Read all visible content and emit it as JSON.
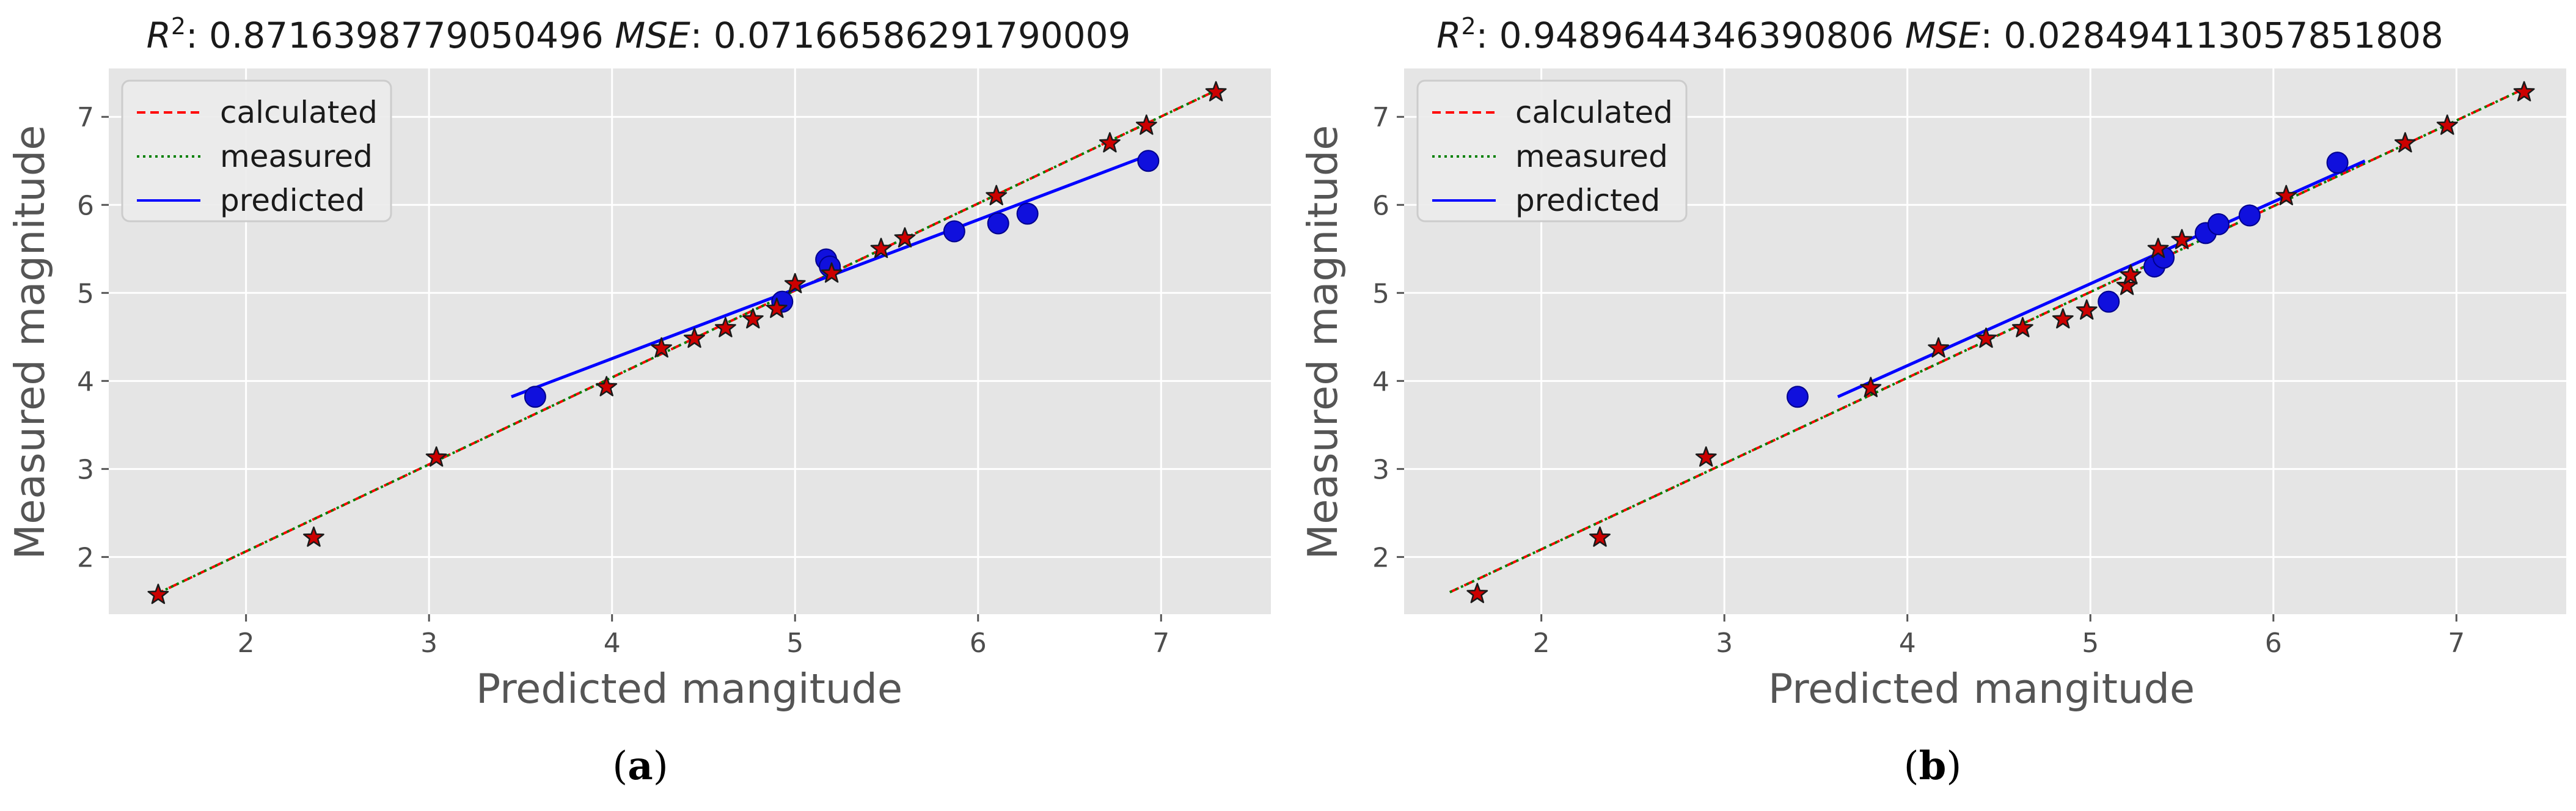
{
  "colors": {
    "calculated": "#ff0000",
    "measured": "#008000",
    "predicted": "#0000ff",
    "star_fill": "#cc0000",
    "circle_fill": "#1010dd",
    "panel_bg": "#e5e5e5",
    "grid": "#ffffff"
  },
  "legend": {
    "calculated": "calculated",
    "measured": "measured",
    "predicted": "predicted"
  },
  "chart_data": [
    {
      "type": "scatter",
      "r2_label": "R",
      "r2_value": ": 0.8716398779050496",
      "mse_label": "MSE",
      "mse_value": ": 0.07166586291790009",
      "xlabel": "Predicted mangitude",
      "ylabel": "Measured magnitude",
      "caption_open": "(",
      "caption_letter": "a",
      "caption_close": ")",
      "xlim": [
        1.25,
        7.6
      ],
      "ylim": [
        1.35,
        7.55
      ],
      "xticks": [
        2,
        3,
        4,
        5,
        6,
        7
      ],
      "yticks": [
        2,
        3,
        4,
        5,
        6,
        7
      ],
      "legend_position": "upper-left",
      "grid": true,
      "calculated_line": [
        [
          1.5,
          1.57
        ],
        [
          7.3,
          7.3
        ]
      ],
      "measured_line": [
        [
          1.5,
          1.57
        ],
        [
          7.3,
          7.3
        ]
      ],
      "predicted_line": [
        [
          3.45,
          3.82
        ],
        [
          6.95,
          6.58
        ]
      ],
      "stars": [
        [
          1.52,
          1.57
        ],
        [
          2.37,
          2.22
        ],
        [
          3.04,
          3.13
        ],
        [
          3.97,
          3.93
        ],
        [
          4.27,
          4.37
        ],
        [
          4.45,
          4.48
        ],
        [
          4.62,
          4.6
        ],
        [
          4.77,
          4.7
        ],
        [
          4.9,
          4.82
        ],
        [
          5.0,
          5.1
        ],
        [
          5.2,
          5.22
        ],
        [
          5.47,
          5.5
        ],
        [
          5.6,
          5.62
        ],
        [
          6.1,
          6.1
        ],
        [
          6.72,
          6.7
        ],
        [
          6.92,
          6.9
        ],
        [
          7.3,
          7.28
        ]
      ],
      "circles": [
        [
          3.58,
          3.82
        ],
        [
          4.93,
          4.9
        ],
        [
          5.17,
          5.38
        ],
        [
          5.19,
          5.3
        ],
        [
          5.87,
          5.7
        ],
        [
          6.11,
          5.79
        ],
        [
          6.27,
          5.9
        ],
        [
          6.93,
          6.5
        ]
      ]
    },
    {
      "type": "scatter",
      "r2_label": "R",
      "r2_value": ": 0.9489644346390806",
      "mse_label": "MSE",
      "mse_value": ": 0.028494113057851808",
      "xlabel": "Predicted mangitude",
      "ylabel": "Measured magnitude",
      "caption_open": "(",
      "caption_letter": "b",
      "caption_close": ")",
      "xlim": [
        1.25,
        7.6
      ],
      "ylim": [
        1.35,
        7.55
      ],
      "xticks": [
        2,
        3,
        4,
        5,
        6,
        7
      ],
      "yticks": [
        2,
        3,
        4,
        5,
        6,
        7
      ],
      "legend_position": "upper-left",
      "grid": true,
      "calculated_line": [
        [
          1.5,
          1.6
        ],
        [
          7.35,
          7.3
        ]
      ],
      "measured_line": [
        [
          1.5,
          1.6
        ],
        [
          7.35,
          7.3
        ]
      ],
      "predicted_line": [
        [
          3.62,
          3.82
        ],
        [
          6.5,
          6.5
        ]
      ],
      "stars": [
        [
          1.65,
          1.58
        ],
        [
          2.32,
          2.22
        ],
        [
          2.9,
          3.13
        ],
        [
          3.8,
          3.92
        ],
        [
          4.17,
          4.37
        ],
        [
          4.43,
          4.48
        ],
        [
          4.63,
          4.6
        ],
        [
          4.85,
          4.7
        ],
        [
          4.98,
          4.8
        ],
        [
          5.2,
          5.08
        ],
        [
          5.22,
          5.2
        ],
        [
          5.37,
          5.5
        ],
        [
          5.5,
          5.6
        ],
        [
          6.07,
          6.1
        ],
        [
          6.72,
          6.7
        ],
        [
          6.95,
          6.9
        ],
        [
          7.37,
          7.28
        ]
      ],
      "circles": [
        [
          3.4,
          3.82
        ],
        [
          5.1,
          4.9
        ],
        [
          5.35,
          5.3
        ],
        [
          5.4,
          5.4
        ],
        [
          5.63,
          5.68
        ],
        [
          5.7,
          5.78
        ],
        [
          5.87,
          5.88
        ],
        [
          6.35,
          6.48
        ]
      ]
    }
  ]
}
